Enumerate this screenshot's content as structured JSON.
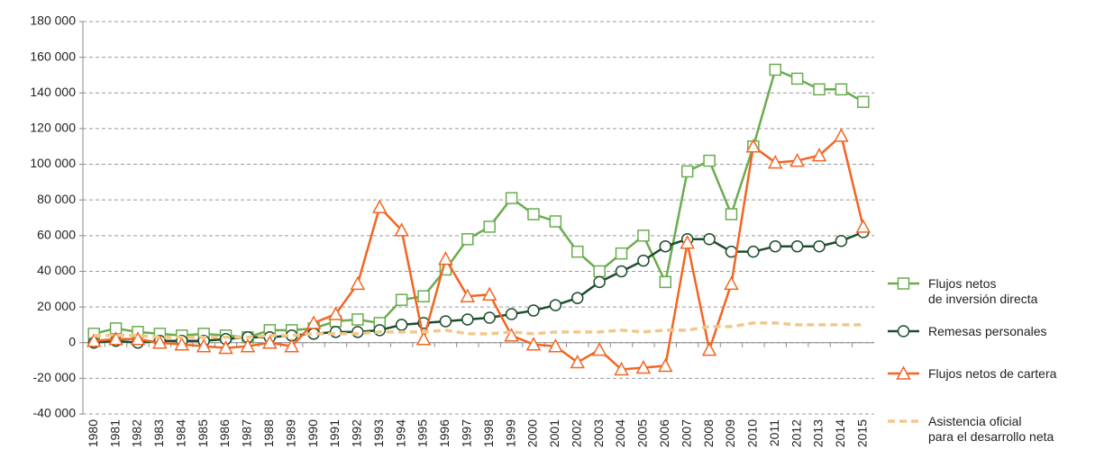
{
  "chart_data": {
    "type": "line",
    "categories": [
      "1980",
      "1981",
      "1982",
      "1983",
      "1984",
      "1985",
      "1986",
      "1987",
      "1988",
      "1989",
      "1990",
      "1991",
      "1992",
      "1993",
      "1994",
      "1995",
      "1996",
      "1997",
      "1998",
      "1999",
      "2000",
      "2001",
      "2002",
      "2003",
      "2004",
      "2005",
      "2006",
      "2007",
      "2008",
      "2009",
      "2010",
      "2011",
      "2012",
      "2013",
      "2014",
      "2015"
    ],
    "series": [
      {
        "name": "Flujos netos\nde inversión directa",
        "color": "#6aac4f",
        "marker": "square",
        "values": [
          5000,
          8000,
          6000,
          5000,
          4000,
          5000,
          4000,
          3000,
          7000,
          7000,
          8000,
          12000,
          13000,
          11000,
          24000,
          26000,
          41000,
          58000,
          65000,
          81000,
          72000,
          68000,
          51000,
          40000,
          50000,
          60000,
          34000,
          96000,
          102000,
          72000,
          110000,
          153000,
          148000,
          142000,
          142000,
          135000
        ]
      },
      {
        "name": "Remesas personales",
        "color": "#1e4d2b",
        "marker": "circle",
        "values": [
          0,
          1000,
          0,
          1000,
          1000,
          1000,
          2000,
          3000,
          3000,
          4000,
          5000,
          6000,
          6000,
          7000,
          10000,
          11000,
          12000,
          13000,
          14000,
          16000,
          18000,
          21000,
          25000,
          34000,
          40000,
          46000,
          54000,
          58000,
          58000,
          51000,
          51000,
          54000,
          54000,
          54000,
          57000,
          62000
        ]
      },
      {
        "name": "Flujos netos de cartera",
        "color": "#f26522",
        "marker": "triangle",
        "values": [
          1000,
          2000,
          2000,
          0,
          -1000,
          -2000,
          -3000,
          -2000,
          0,
          -2000,
          11000,
          16000,
          33000,
          76000,
          63000,
          2000,
          47000,
          26000,
          27000,
          4000,
          -1000,
          -2000,
          -11000,
          -4000,
          -15000,
          -14000,
          -13000,
          56000,
          -4000,
          33000,
          110000,
          101000,
          102000,
          105000,
          116000,
          65000
        ]
      },
      {
        "name": "Asistencia oficial\npara el desarrollo neta",
        "color": "#f0c88c",
        "dash": true,
        "values": [
          4000,
          4000,
          4000,
          3000,
          3000,
          3000,
          3000,
          3000,
          4000,
          4000,
          5000,
          5000,
          5000,
          6000,
          6000,
          6000,
          7000,
          5000,
          5000,
          6000,
          5000,
          6000,
          6000,
          6000,
          7000,
          6000,
          7000,
          7000,
          9000,
          9000,
          11000,
          11000,
          10000,
          10000,
          10000,
          10000
        ]
      }
    ],
    "ylim": [
      -40000,
      180000
    ],
    "yticks": [
      {
        "value": -40000,
        "label": "-40 000"
      },
      {
        "value": -20000,
        "label": "-20 000"
      },
      0,
      {
        "value": 20000,
        "label": "20 000"
      },
      {
        "value": 40000,
        "label": "40 000"
      },
      {
        "value": 60000,
        "label": "60 000"
      },
      {
        "value": 80000,
        "label": "80 000"
      },
      {
        "value": 100000,
        "label": "100 000"
      },
      {
        "value": 120000,
        "label": "120 000"
      },
      {
        "value": 140000,
        "label": "140 000"
      },
      {
        "value": 160000,
        "label": "160 000"
      },
      {
        "value": 180000,
        "label": "180 000"
      }
    ],
    "grid": true
  }
}
